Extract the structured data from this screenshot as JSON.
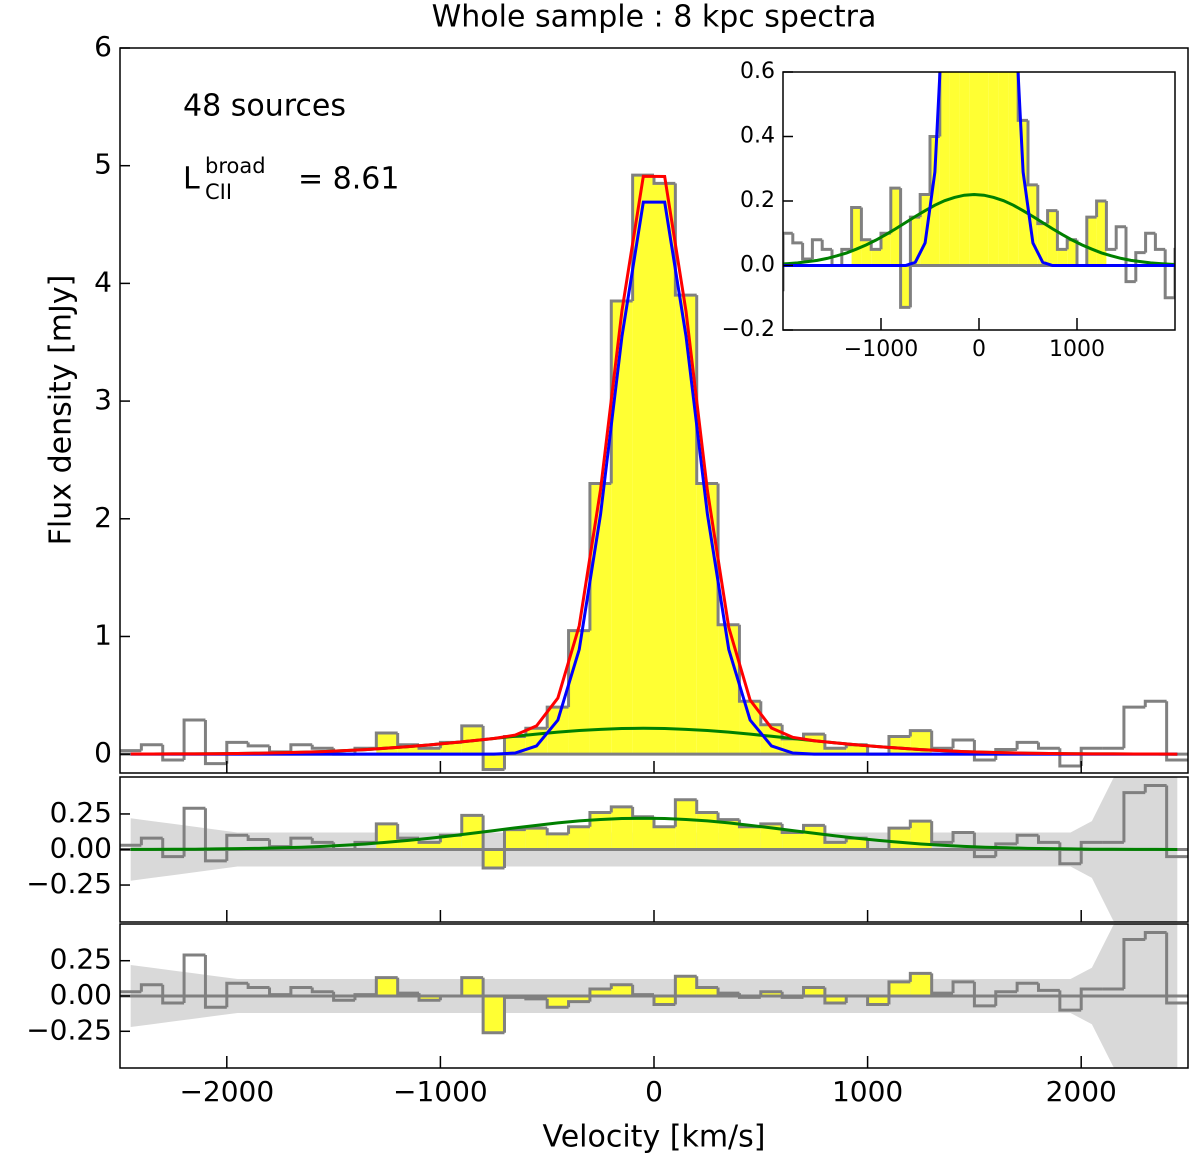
{
  "chart_data": [
    {
      "type": "histogram",
      "title": "Whole sample : 8 kpc spectra",
      "ylabel": "Flux density [mJy]",
      "annotation": "48 sources",
      "luminosity": {
        "symbol": "L",
        "sup": "broad",
        "sub": "CII",
        "text": "= 8.61"
      },
      "bins": [
        -2500,
        -2400,
        -2300,
        -2200,
        -2100,
        -2000,
        -1900,
        -1800,
        -1700,
        -1600,
        -1500,
        -1400,
        -1300,
        -1200,
        -1100,
        -1000,
        -900,
        -800,
        -700,
        -600,
        -500,
        -400,
        -300,
        -200,
        -100,
        0,
        100,
        200,
        300,
        400,
        500,
        600,
        700,
        800,
        900,
        1000,
        1100,
        1200,
        1300,
        1400,
        1500,
        1600,
        1700,
        1800,
        1900,
        2000,
        2100,
        2200,
        2300,
        2400,
        2500
      ],
      "x": [
        -2450,
        -2350,
        -2250,
        -2150,
        -2050,
        -1950,
        -1850,
        -1750,
        -1650,
        -1550,
        -1450,
        -1350,
        -1250,
        -1150,
        -1050,
        -950,
        -850,
        -750,
        -650,
        -550,
        -450,
        -350,
        -250,
        -150,
        -50,
        50,
        150,
        250,
        350,
        450,
        550,
        650,
        750,
        850,
        950,
        1050,
        1150,
        1250,
        1350,
        1450,
        1550,
        1650,
        1750,
        1850,
        1950,
        2050,
        2150,
        2250,
        2350,
        2450
      ],
      "values": [
        0.03,
        0.08,
        -0.05,
        0.29,
        -0.08,
        0.1,
        0.07,
        0.02,
        0.08,
        0.05,
        0,
        0.05,
        0.18,
        0.08,
        0.05,
        0.1,
        0.24,
        -0.13,
        0.15,
        0.22,
        0.4,
        1.05,
        2.3,
        3.85,
        4.92,
        4.85,
        3.9,
        2.3,
        1.1,
        0.45,
        0.25,
        0.13,
        0.17,
        0.05,
        0.08,
        0,
        0.15,
        0.2,
        0.05,
        0.12,
        -0.05,
        0.04,
        0.1,
        0.05,
        -0.1,
        0.05,
        0.05,
        0.4,
        0.45,
        -0.05
      ],
      "color": "#808080",
      "fill_color": "#ffff33",
      "fill_xlim": [
        -1300,
        1300
      ],
      "curves": [
        {
          "color": "#008000",
          "values": [
            0.001,
            0.001,
            0.002,
            0.002,
            0.004,
            0.006,
            0.008,
            0.012,
            0.016,
            0.022,
            0.03,
            0.039,
            0.051,
            0.064,
            0.079,
            0.096,
            0.114,
            0.133,
            0.152,
            0.17,
            0.187,
            0.201,
            0.211,
            0.218,
            0.22,
            0.218,
            0.211,
            0.201,
            0.187,
            0.17,
            0.152,
            0.133,
            0.114,
            0.096,
            0.079,
            0.064,
            0.051,
            0.039,
            0.03,
            0.022,
            0.016,
            0.012,
            0.008,
            0.006,
            0.004,
            0.002,
            0.002,
            0.001,
            0.001,
            0
          ]
        },
        {
          "color": "#0000ff",
          "values": [
            0,
            0,
            0,
            0,
            0,
            0,
            0,
            0,
            0,
            0,
            0,
            0,
            0,
            0,
            0,
            0,
            0,
            0,
            0.01,
            0.07,
            0.29,
            0.89,
            2.04,
            3.55,
            4.69,
            4.69,
            3.55,
            2.04,
            0.89,
            0.29,
            0.07,
            0.01,
            0,
            0,
            0,
            0,
            0,
            0,
            0,
            0,
            0,
            0,
            0,
            0,
            0,
            0,
            0,
            0,
            0,
            0
          ]
        },
        {
          "color": "#ff0000",
          "values": [
            0.001,
            0.001,
            0.002,
            0.002,
            0.004,
            0.006,
            0.008,
            0.012,
            0.016,
            0.022,
            0.03,
            0.039,
            0.051,
            0.064,
            0.079,
            0.096,
            0.114,
            0.133,
            0.162,
            0.24,
            0.477,
            1.091,
            2.251,
            3.768,
            4.91,
            4.908,
            3.761,
            2.241,
            1.077,
            0.46,
            0.222,
            0.143,
            0.114,
            0.096,
            0.079,
            0.064,
            0.051,
            0.039,
            0.03,
            0.022,
            0.016,
            0.012,
            0.008,
            0.006,
            0.004,
            0.002,
            0.002,
            0.001,
            0.001,
            0
          ]
        }
      ],
      "xlim": [
        -2500,
        2500
      ],
      "ylim": [
        -0.16,
        6
      ],
      "xticks": [
        -2000,
        -1000,
        0,
        1000,
        2000
      ],
      "yticks": [
        0,
        1,
        2,
        3,
        4,
        5,
        6
      ]
    },
    {
      "type": "histogram",
      "values": [
        0.03,
        0.08,
        -0.05,
        0.29,
        -0.08,
        0.1,
        0.07,
        0.02,
        0.08,
        0.05,
        0,
        0.05,
        0.18,
        0.08,
        0.05,
        0.1,
        0.24,
        -0.13,
        0.14,
        0.15,
        0.11,
        0.16,
        0.26,
        0.3,
        0.23,
        0.16,
        0.35,
        0.26,
        0.21,
        0.16,
        0.18,
        0.12,
        0.17,
        0.05,
        0.08,
        0,
        0.15,
        0.2,
        0.05,
        0.12,
        -0.05,
        0.04,
        0.1,
        0.05,
        -0.1,
        0.05,
        0.05,
        0.4,
        0.45,
        -0.05
      ],
      "error_band": [
        0.22,
        0.2,
        0.18,
        0.16,
        0.14,
        0.12,
        0.12,
        0.12,
        0.12,
        0.12,
        0.12,
        0.12,
        0.12,
        0.12,
        0.12,
        0.12,
        0.12,
        0.12,
        0.12,
        0.12,
        0.12,
        0.12,
        0.12,
        0.12,
        0.12,
        0.12,
        0.12,
        0.12,
        0.12,
        0.12,
        0.12,
        0.12,
        0.12,
        0.12,
        0.12,
        0.12,
        0.12,
        0.12,
        0.12,
        0.12,
        0.12,
        0.12,
        0.12,
        0.12,
        0.12,
        0.2,
        0.5,
        0.6,
        0.6,
        0.6
      ],
      "band_color": "#d9d9d9",
      "xlim": [
        -2500,
        2500
      ],
      "ylim": [
        -0.51,
        0.51
      ],
      "xticks": [
        -2000,
        -1000,
        0,
        1000,
        2000
      ],
      "yticks": [
        0.25,
        {
          "value": 0,
          "label": "0.00"
        },
        {
          "value": -0.25,
          "label": "−0.25"
        }
      ]
    },
    {
      "type": "histogram",
      "values": [
        0.03,
        0.08,
        -0.05,
        0.29,
        -0.08,
        0.09,
        0.06,
        0.01,
        0.06,
        0.03,
        -0.03,
        0.01,
        0.13,
        0.02,
        -0.03,
        0,
        0.13,
        -0.26,
        -0.01,
        -0.02,
        -0.08,
        -0.04,
        0.05,
        0.08,
        0.01,
        -0.06,
        0.14,
        0.06,
        0.02,
        -0.01,
        0.03,
        -0.01,
        0.06,
        -0.05,
        0,
        -0.06,
        0.1,
        0.16,
        0.02,
        0.1,
        -0.07,
        0.03,
        0.09,
        0.04,
        -0.1,
        0.05,
        0.05,
        0.4,
        0.45,
        -0.05
      ],
      "xlabel": "Velocity [km/s]",
      "xlim": [
        -2500,
        2500
      ],
      "ylim": [
        -0.51,
        0.51
      ],
      "xticks": [
        {
          "value": -2000,
          "label": "−2000"
        },
        {
          "value": -1000,
          "label": "−1000"
        },
        0,
        1000,
        2000
      ],
      "yticks": [
        0.25,
        {
          "value": 0,
          "label": "0.00"
        },
        {
          "value": -0.25,
          "label": "−0.25"
        }
      ]
    },
    {
      "type": "histogram",
      "xlim": [
        -2000,
        2000
      ],
      "ylim": [
        -0.2,
        0.6
      ],
      "xticks": [
        {
          "value": -1000,
          "label": "−1000"
        },
        0,
        1000
      ],
      "yticks": [
        {
          "value": -0.2,
          "label": "−0.2"
        },
        {
          "value": 0,
          "label": "0.0"
        },
        0.2,
        0.4,
        0.6
      ]
    }
  ]
}
